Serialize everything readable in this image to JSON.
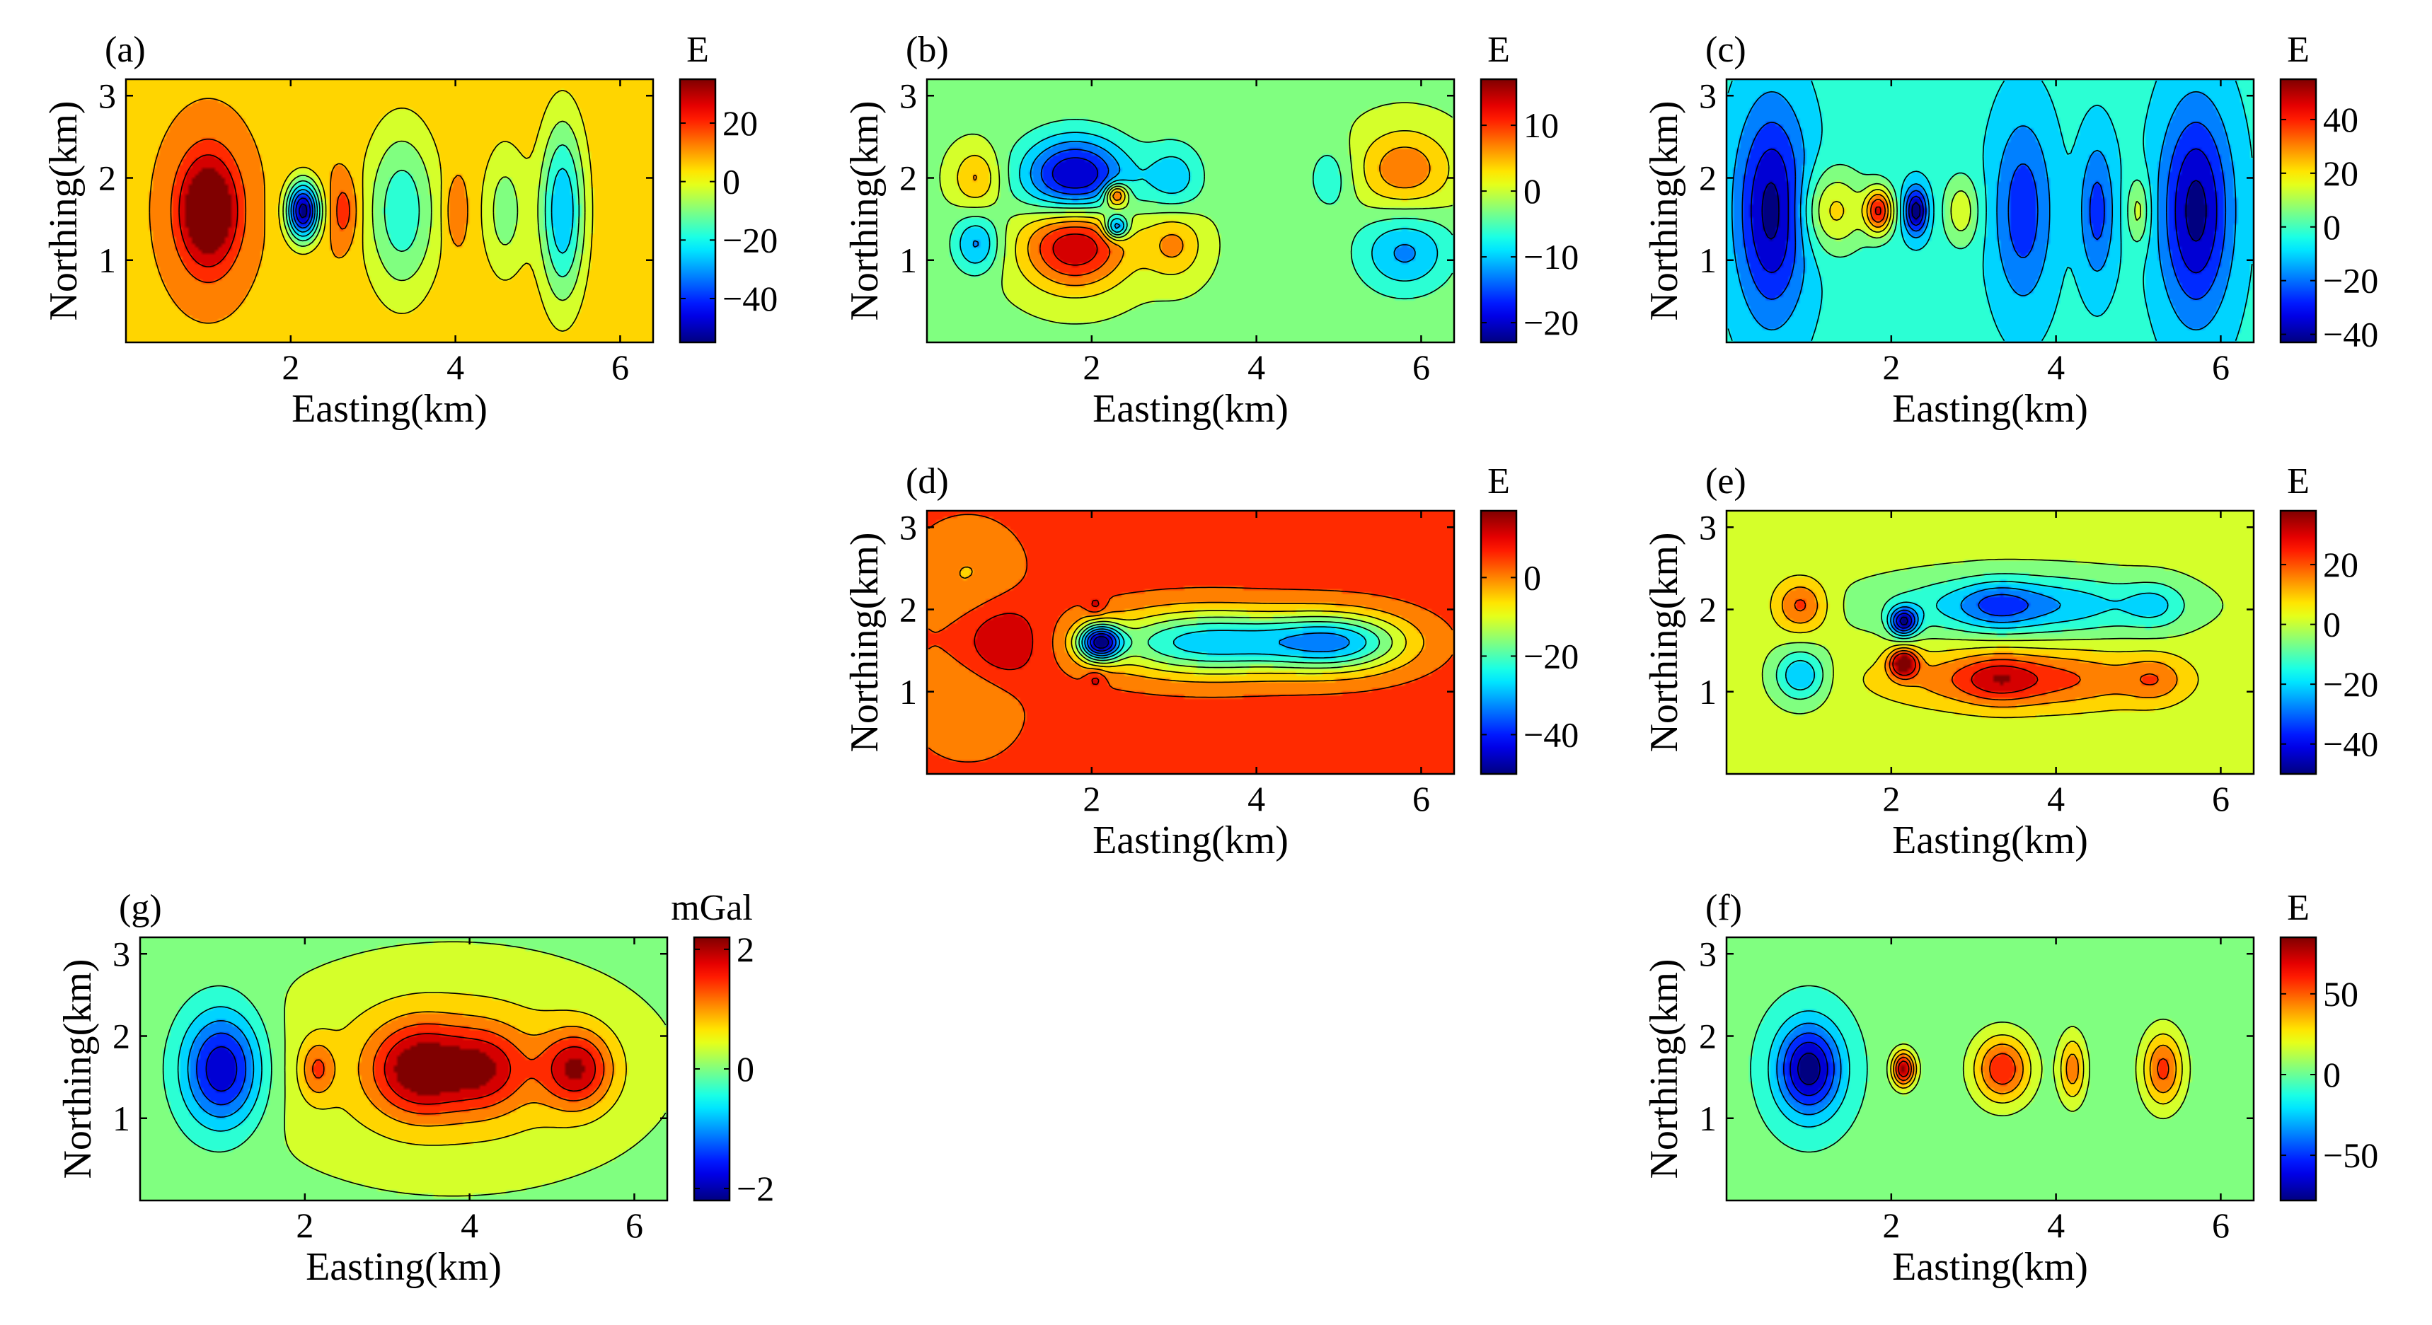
{
  "chart_data": [
    {
      "id": "a",
      "type": "heatmap",
      "panel_label": "(a)",
      "unit": "E",
      "xlabel": "Easting(km)",
      "ylabel": "Northing(km)",
      "xlim": [
        0,
        6.4
      ],
      "ylim": [
        0,
        3.2
      ],
      "xticks": [
        2,
        4,
        6
      ],
      "yticks": [
        1,
        2,
        3
      ],
      "clim": [
        -55,
        35
      ],
      "cbar_ticks": [
        20,
        0,
        -20,
        -40
      ],
      "background": 8,
      "anomalies": [
        {
          "x": 1.0,
          "y": 1.6,
          "amp": 43,
          "sx": 0.25,
          "sy": 0.48
        },
        {
          "x": 2.15,
          "y": 1.6,
          "amp": -63,
          "sx": 0.14,
          "sy": 0.25
        },
        {
          "x": 2.65,
          "y": 1.6,
          "amp": 14,
          "sx": 0.12,
          "sy": 0.3
        },
        {
          "x": 3.35,
          "y": 1.6,
          "amp": -27,
          "sx": 0.32,
          "sy": 0.75
        },
        {
          "x": 4.0,
          "y": 1.6,
          "amp": 10,
          "sx": 0.1,
          "sy": 0.3
        },
        {
          "x": 4.6,
          "y": 1.6,
          "amp": -18,
          "sx": 0.2,
          "sy": 0.6
        },
        {
          "x": 5.3,
          "y": 1.6,
          "amp": -36,
          "sx": 0.2,
          "sy": 0.8
        }
      ]
    },
    {
      "id": "b",
      "type": "heatmap",
      "panel_label": "(b)",
      "unit": "E",
      "xlabel": "Easting(km)",
      "ylabel": "Northing(km)",
      "xlim": [
        0,
        6.4
      ],
      "ylim": [
        0,
        3.2
      ],
      "xticks": [
        2,
        4,
        6
      ],
      "yticks": [
        1,
        2,
        3
      ],
      "clim": [
        -23,
        17
      ],
      "cbar_ticks": [
        10,
        0,
        -10,
        -20
      ],
      "background": -2,
      "anomalies": [
        {
          "x": 1.8,
          "y": 2.0,
          "amp": -21,
          "sx": 0.45,
          "sy": 0.35
        },
        {
          "x": 1.8,
          "y": 1.2,
          "amp": 18,
          "sx": 0.45,
          "sy": 0.38
        },
        {
          "x": 2.3,
          "y": 1.8,
          "amp": 16,
          "sx": 0.1,
          "sy": 0.1
        },
        {
          "x": 2.3,
          "y": 1.4,
          "amp": -16,
          "sx": 0.1,
          "sy": 0.1
        },
        {
          "x": 0.6,
          "y": 2.0,
          "amp": 8,
          "sx": 0.2,
          "sy": 0.25
        },
        {
          "x": 0.6,
          "y": 1.2,
          "amp": -10,
          "sx": 0.2,
          "sy": 0.25
        },
        {
          "x": 3.0,
          "y": 2.0,
          "amp": -8,
          "sx": 0.25,
          "sy": 0.3
        },
        {
          "x": 3.0,
          "y": 1.2,
          "amp": 8,
          "sx": 0.25,
          "sy": 0.3
        },
        {
          "x": 5.8,
          "y": 2.1,
          "amp": 10,
          "sx": 0.4,
          "sy": 0.35
        },
        {
          "x": 5.8,
          "y": 1.1,
          "amp": -10,
          "sx": 0.4,
          "sy": 0.35
        },
        {
          "x": 4.9,
          "y": 2.0,
          "amp": -5,
          "sx": 0.2,
          "sy": 0.3
        }
      ]
    },
    {
      "id": "c",
      "type": "heatmap",
      "panel_label": "(c)",
      "unit": "E",
      "xlabel": "Easting(km)",
      "ylabel": "Northing(km)",
      "xlim": [
        0,
        6.4
      ],
      "ylim": [
        0,
        3.2
      ],
      "xticks": [
        2,
        4,
        6
      ],
      "yticks": [
        1,
        2,
        3
      ],
      "clim": [
        -43,
        55
      ],
      "cbar_ticks": [
        40,
        20,
        0,
        -20,
        -40
      ],
      "background": -4,
      "anomalies": [
        {
          "x": 0.55,
          "y": 1.6,
          "amp": -38,
          "sx": 0.3,
          "sy": 0.9
        },
        {
          "x": 1.3,
          "y": 1.6,
          "amp": 25,
          "sx": 0.28,
          "sy": 0.35
        },
        {
          "x": 1.85,
          "y": 1.6,
          "amp": 45,
          "sx": 0.12,
          "sy": 0.2
        },
        {
          "x": 2.3,
          "y": 1.6,
          "amp": -40,
          "sx": 0.1,
          "sy": 0.2
        },
        {
          "x": 2.85,
          "y": 1.6,
          "amp": 20,
          "sx": 0.15,
          "sy": 0.3
        },
        {
          "x": 3.6,
          "y": 1.6,
          "amp": -24,
          "sx": 0.25,
          "sy": 0.8
        },
        {
          "x": 4.5,
          "y": 1.6,
          "amp": -22,
          "sx": 0.15,
          "sy": 0.6
        },
        {
          "x": 5.0,
          "y": 1.6,
          "amp": 18,
          "sx": 0.1,
          "sy": 0.3
        },
        {
          "x": 5.7,
          "y": 1.6,
          "amp": -38,
          "sx": 0.3,
          "sy": 0.9
        }
      ]
    },
    {
      "id": "d",
      "type": "heatmap",
      "panel_label": "(d)",
      "unit": "E",
      "xlabel": "Easting(km)",
      "ylabel": "Northing(km)",
      "xlim": [
        0,
        6.4
      ],
      "ylim": [
        0,
        3.2
      ],
      "xticks": [
        2,
        4,
        6
      ],
      "yticks": [
        1,
        2,
        3
      ],
      "clim": [
        -50,
        17
      ],
      "cbar_ticks": [
        0,
        -20,
        -40
      ],
      "background": 5,
      "anomalies": [
        {
          "x": 0.9,
          "y": 1.6,
          "amp": 12,
          "sx": 0.35,
          "sy": 0.35
        },
        {
          "x": 2.1,
          "y": 1.6,
          "amp": -46,
          "sx": 0.18,
          "sy": 0.15
        },
        {
          "x": 3.4,
          "y": 1.6,
          "amp": -33,
          "sx": 0.9,
          "sy": 0.28
        },
        {
          "x": 5.0,
          "y": 1.6,
          "amp": -31,
          "sx": 0.6,
          "sy": 0.25
        },
        {
          "x": 0.5,
          "y": 0.9,
          "amp": -8,
          "sx": 0.45,
          "sy": 0.45
        },
        {
          "x": 0.5,
          "y": 2.4,
          "amp": -8,
          "sx": 0.45,
          "sy": 0.45
        },
        {
          "x": 2.05,
          "y": 2.05,
          "amp": 8,
          "sx": 0.08,
          "sy": 0.08
        },
        {
          "x": 2.05,
          "y": 1.15,
          "amp": 8,
          "sx": 0.08,
          "sy": 0.08
        }
      ]
    },
    {
      "id": "e",
      "type": "heatmap",
      "panel_label": "(e)",
      "unit": "E",
      "xlabel": "Easting(km)",
      "ylabel": "Northing(km)",
      "xlim": [
        0,
        6.4
      ],
      "ylim": [
        0,
        3.2
      ],
      "xticks": [
        2,
        4,
        6
      ],
      "yticks": [
        1,
        2,
        3
      ],
      "clim": [
        -50,
        38
      ],
      "cbar_ticks": [
        20,
        0,
        -20,
        -40
      ],
      "background": 0,
      "anomalies": [
        {
          "x": 0.9,
          "y": 2.05,
          "amp": 22,
          "sx": 0.22,
          "sy": 0.22
        },
        {
          "x": 0.9,
          "y": 1.2,
          "amp": -25,
          "sx": 0.22,
          "sy": 0.22
        },
        {
          "x": 2.15,
          "y": 1.85,
          "amp": -42,
          "sx": 0.12,
          "sy": 0.12
        },
        {
          "x": 2.15,
          "y": 1.35,
          "amp": 38,
          "sx": 0.12,
          "sy": 0.12
        },
        {
          "x": 3.6,
          "y": 2.05,
          "amp": -26,
          "sx": 1.1,
          "sy": 0.25
        },
        {
          "x": 3.6,
          "y": 1.15,
          "amp": 24,
          "sx": 1.1,
          "sy": 0.25
        },
        {
          "x": 3.3,
          "y": 2.05,
          "amp": -12,
          "sx": 0.3,
          "sy": 0.2
        },
        {
          "x": 3.3,
          "y": 1.15,
          "amp": 12,
          "sx": 0.3,
          "sy": 0.2
        },
        {
          "x": 5.2,
          "y": 2.05,
          "amp": -12,
          "sx": 0.25,
          "sy": 0.2
        },
        {
          "x": 5.2,
          "y": 1.15,
          "amp": 12,
          "sx": 0.25,
          "sy": 0.2
        }
      ]
    },
    {
      "id": "f",
      "type": "heatmap",
      "panel_label": "(f)",
      "unit": "E",
      "xlabel": "Easting(km)",
      "ylabel": "Northing(km)",
      "xlim": [
        0,
        6.4
      ],
      "ylim": [
        0,
        3.2
      ],
      "xticks": [
        2,
        4,
        6
      ],
      "yticks": [
        1,
        2,
        3
      ],
      "clim": [
        -78,
        85
      ],
      "cbar_ticks": [
        50,
        0,
        -50
      ],
      "background": 0,
      "anomalies": [
        {
          "x": 1.0,
          "y": 1.6,
          "amp": -80,
          "sx": 0.28,
          "sy": 0.4
        },
        {
          "x": 2.15,
          "y": 1.6,
          "amp": 80,
          "sx": 0.1,
          "sy": 0.15
        },
        {
          "x": 3.35,
          "y": 1.6,
          "amp": 62,
          "sx": 0.25,
          "sy": 0.3
        },
        {
          "x": 4.2,
          "y": 1.6,
          "amp": 45,
          "sx": 0.12,
          "sy": 0.3
        },
        {
          "x": 5.3,
          "y": 1.6,
          "amp": 55,
          "sx": 0.18,
          "sy": 0.33
        }
      ]
    },
    {
      "id": "g",
      "type": "heatmap",
      "panel_label": "(g)",
      "unit": "mGal",
      "xlabel": "Easting(km)",
      "ylabel": "Northing(km)",
      "xlim": [
        0,
        6.4
      ],
      "ylim": [
        0,
        3.2
      ],
      "xticks": [
        2,
        4,
        6
      ],
      "yticks": [
        1,
        2,
        3
      ],
      "clim": [
        -2.2,
        2.2
      ],
      "cbar_ticks": [
        2,
        0,
        -2
      ],
      "background": 0,
      "anomalies": [
        {
          "x": 1.0,
          "y": 1.6,
          "amp": -2.1,
          "sx": 0.35,
          "sy": 0.5
        },
        {
          "x": 2.15,
          "y": 1.6,
          "amp": 0.9,
          "sx": 0.15,
          "sy": 0.25
        },
        {
          "x": 3.4,
          "y": 1.6,
          "amp": 1.7,
          "sx": 0.4,
          "sy": 0.38
        },
        {
          "x": 4.2,
          "y": 1.6,
          "amp": 1.2,
          "sx": 0.35,
          "sy": 0.35
        },
        {
          "x": 5.3,
          "y": 1.6,
          "amp": 1.6,
          "sx": 0.3,
          "sy": 0.33
        },
        {
          "x": 3.8,
          "y": 1.6,
          "amp": 0.8,
          "sx": 1.6,
          "sy": 0.9
        }
      ]
    }
  ],
  "colors": {
    "axis": "#000000",
    "contour_line": "#000000",
    "background": "#ffffff"
  }
}
